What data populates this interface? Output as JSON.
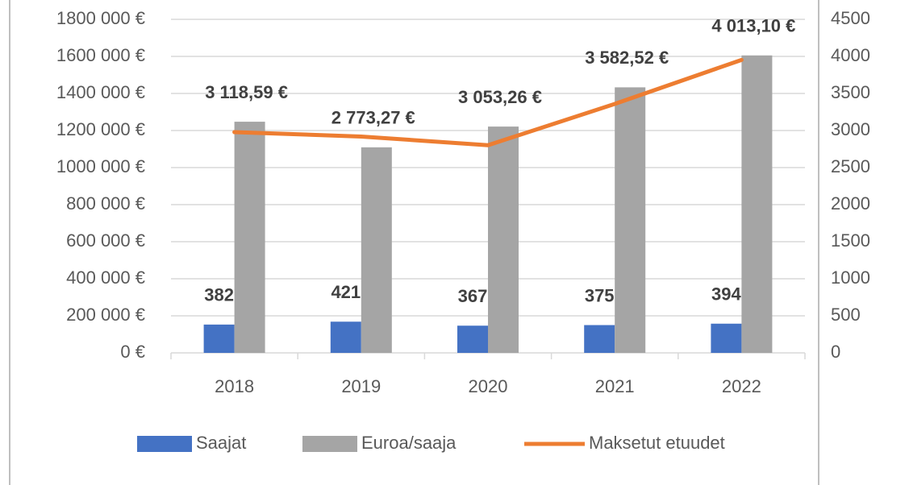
{
  "chart_data": {
    "type": "bar-line",
    "categories": [
      "2018",
      "2019",
      "2020",
      "2021",
      "2022"
    ],
    "series": [
      {
        "name": "Saajat",
        "type": "bar",
        "axis": "y2",
        "color": "#4472c4",
        "values": [
          382,
          421,
          367,
          375,
          394
        ]
      },
      {
        "name": "Euroa/saaja",
        "type": "bar",
        "axis": "y2",
        "color": "#a5a5a5",
        "values": [
          3118.59,
          2773.27,
          3053.26,
          3582.52,
          4013.1
        ],
        "value_labels": [
          "3 118,59 €",
          "2 773,27 €",
          "3 053,26 €",
          "3 582,52 €",
          "4 013,10 €"
        ]
      },
      {
        "name": "Maksetut etuudet",
        "type": "line",
        "axis": "y",
        "color": "#ed7d31",
        "values": [
          1191301,
          1167547,
          1120546,
          1343445,
          1581161
        ]
      }
    ],
    "ylim": [
      0,
      1800000
    ],
    "yticks": [
      {
        "value": 0,
        "label": "0 €"
      },
      {
        "value": 200000,
        "label": "200 000 €"
      },
      {
        "value": 400000,
        "label": "400 000 €"
      },
      {
        "value": 600000,
        "label": "600 000 €"
      },
      {
        "value": 800000,
        "label": "800 000 €"
      },
      {
        "value": 1000000,
        "label": "1000 000 €"
      },
      {
        "value": 1200000,
        "label": "1200 000 €"
      },
      {
        "value": 1400000,
        "label": "1400 000 €"
      },
      {
        "value": 1600000,
        "label": "1600 000 €"
      },
      {
        "value": 1800000,
        "label": "1800 000 €"
      }
    ],
    "y2lim": [
      0,
      4500
    ],
    "y2ticks": [
      0,
      500,
      1000,
      1500,
      2000,
      2500,
      3000,
      3500,
      4000,
      4500
    ],
    "grid": true,
    "legend": "bottom"
  }
}
